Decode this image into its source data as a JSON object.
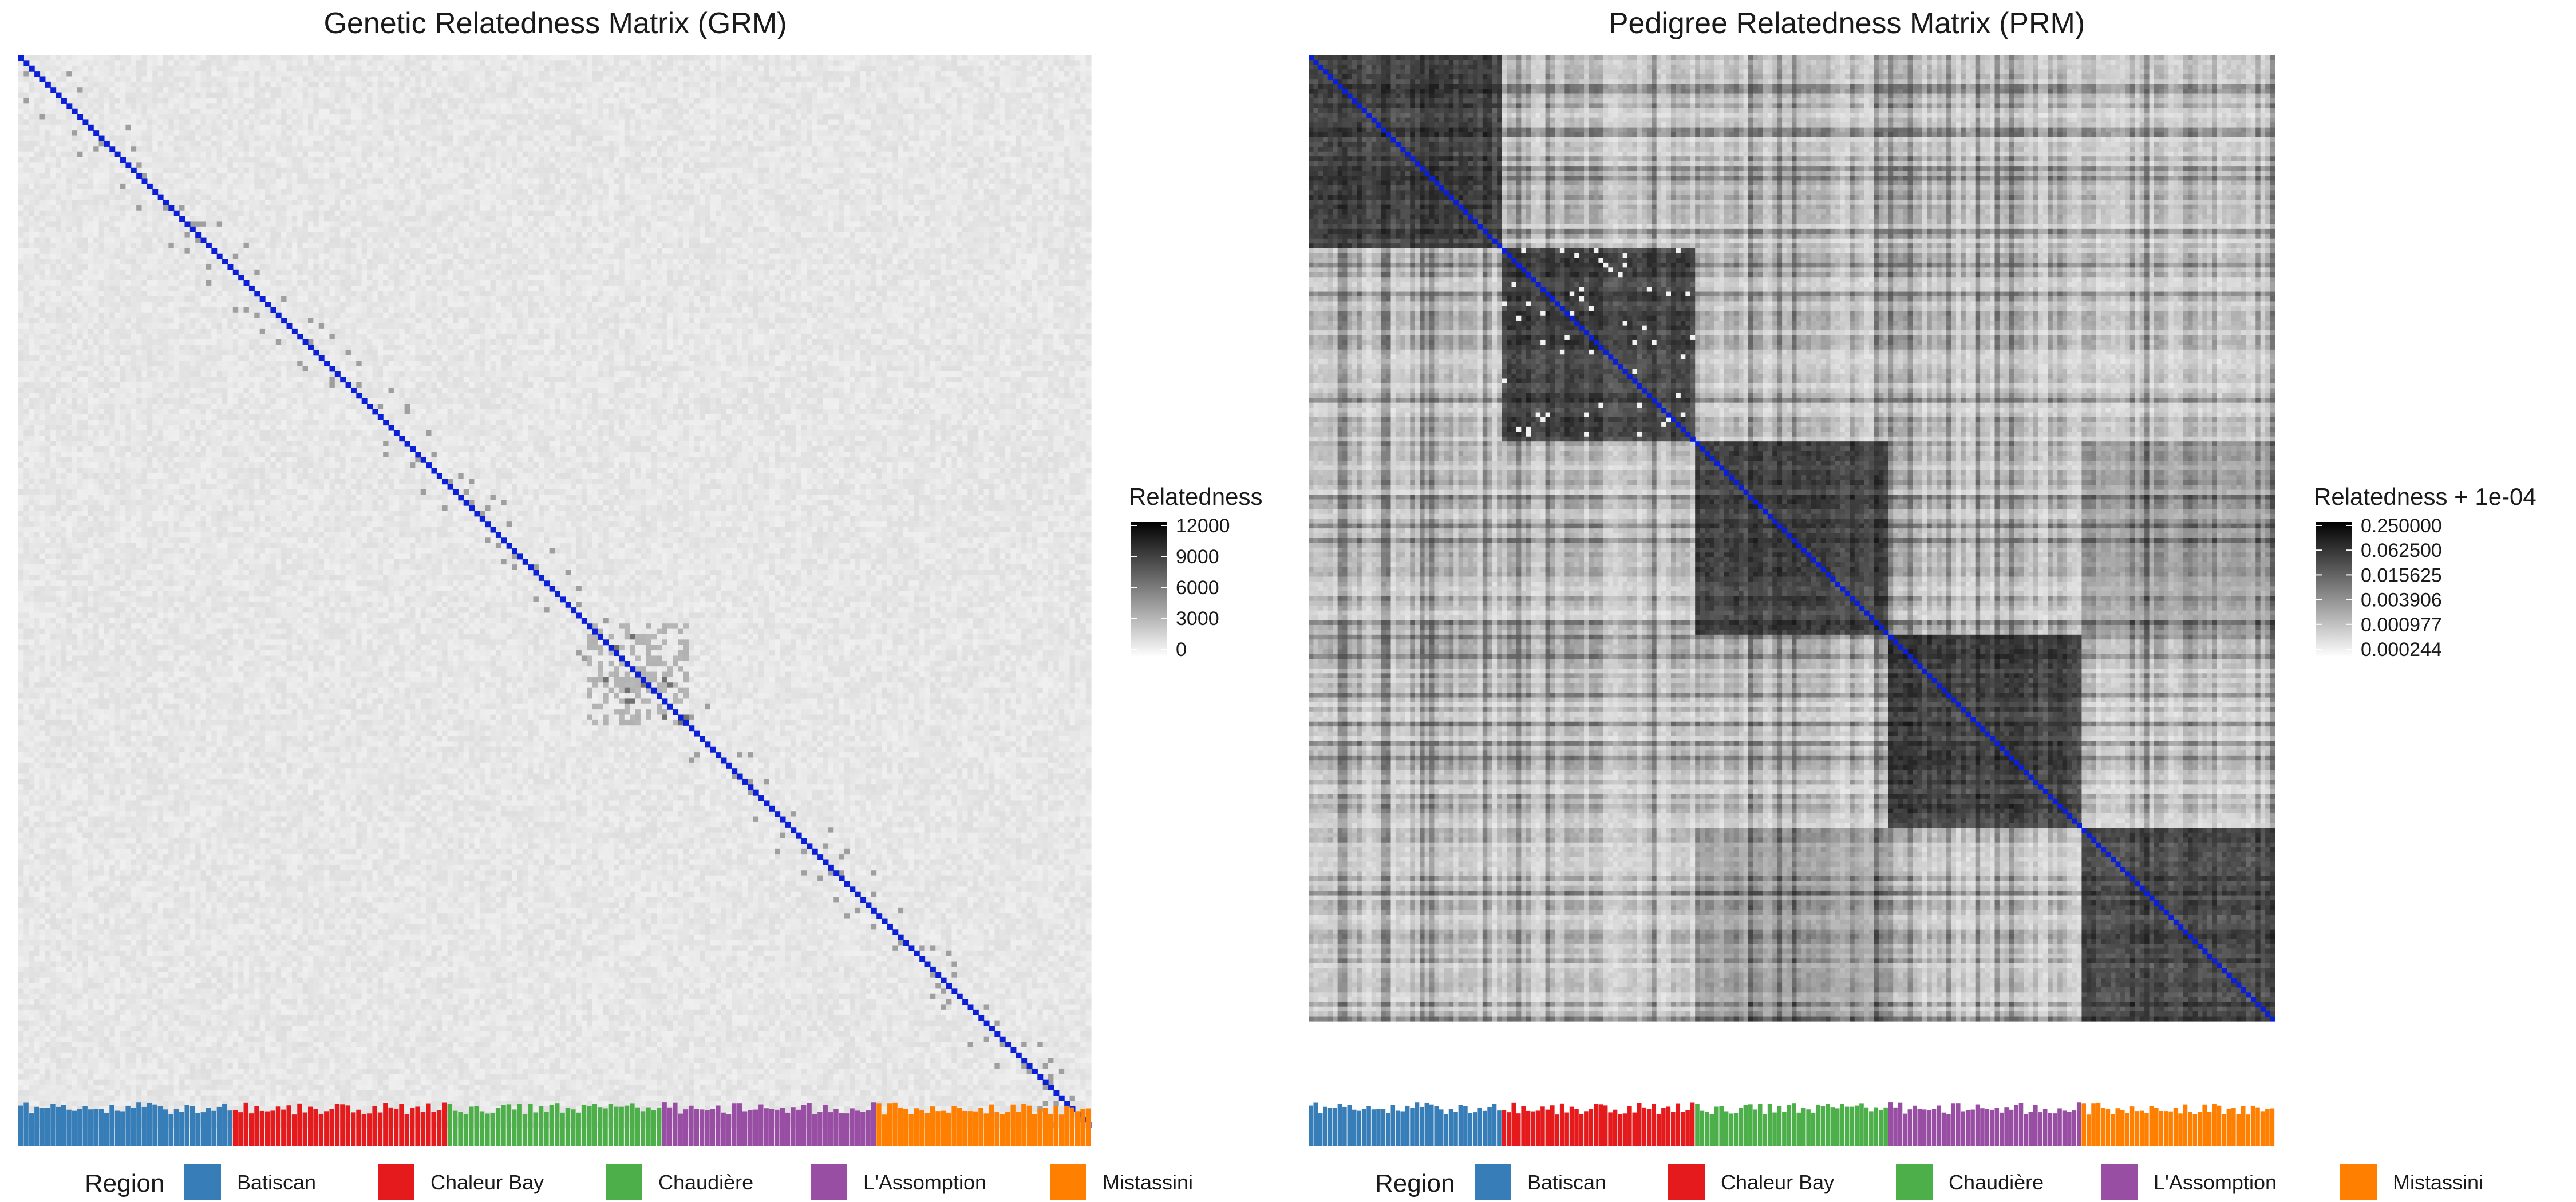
{
  "chart_data": [
    {
      "type": "heatmap",
      "title": "Genetic Relatedness Matrix (GRM)",
      "n_individuals": 200,
      "diagonal_color": "#0a1fd8",
      "colorbar": {
        "title": "Relatedness",
        "scale": "linear",
        "range": [
          0,
          12000
        ],
        "ticks": [
          "12000",
          "9000",
          "6000",
          "3000",
          "0"
        ],
        "colors": [
          "#ffffff",
          "#000000"
        ]
      },
      "groups": [
        {
          "name": "Batiscan",
          "count": 40
        },
        {
          "name": "Chaleur Bay",
          "count": 40
        },
        {
          "name": "Chaudière",
          "count": 40
        },
        {
          "name": "L'Assomption",
          "count": 40
        },
        {
          "name": "Mistassini",
          "count": 40
        }
      ],
      "description_values": {
        "background_relatedness_approx": 600,
        "diagonal_relatedness_approx": 12000
      }
    },
    {
      "type": "heatmap",
      "title": "Pedigree Relatedness Matrix (PRM)",
      "n_individuals": 200,
      "diagonal_color": "#0a1fd8",
      "colorbar": {
        "title": "Relatedness + 1e-04",
        "scale": "log2",
        "ticks": [
          "0.250000",
          "0.062500",
          "0.015625",
          "0.003906",
          "0.000977",
          "0.000244"
        ],
        "colors": [
          "#ffffff",
          "#000000"
        ]
      },
      "groups": [
        {
          "name": "Batiscan",
          "count": 40
        },
        {
          "name": "Chaleur Bay",
          "count": 40
        },
        {
          "name": "Chaudière",
          "count": 40
        },
        {
          "name": "L'Assomption",
          "count": 40
        },
        {
          "name": "Mistassini",
          "count": 40
        }
      ]
    }
  ],
  "legend": {
    "title": "Region",
    "items": [
      {
        "name": "Batiscan",
        "color": "#377eb8"
      },
      {
        "name": "Chaleur Bay",
        "color": "#e41a1c"
      },
      {
        "name": "Chaudière",
        "color": "#4daf4a"
      },
      {
        "name": "L'Assomption",
        "color": "#984ea3"
      },
      {
        "name": "Mistassini",
        "color": "#ff7f00"
      }
    ]
  }
}
